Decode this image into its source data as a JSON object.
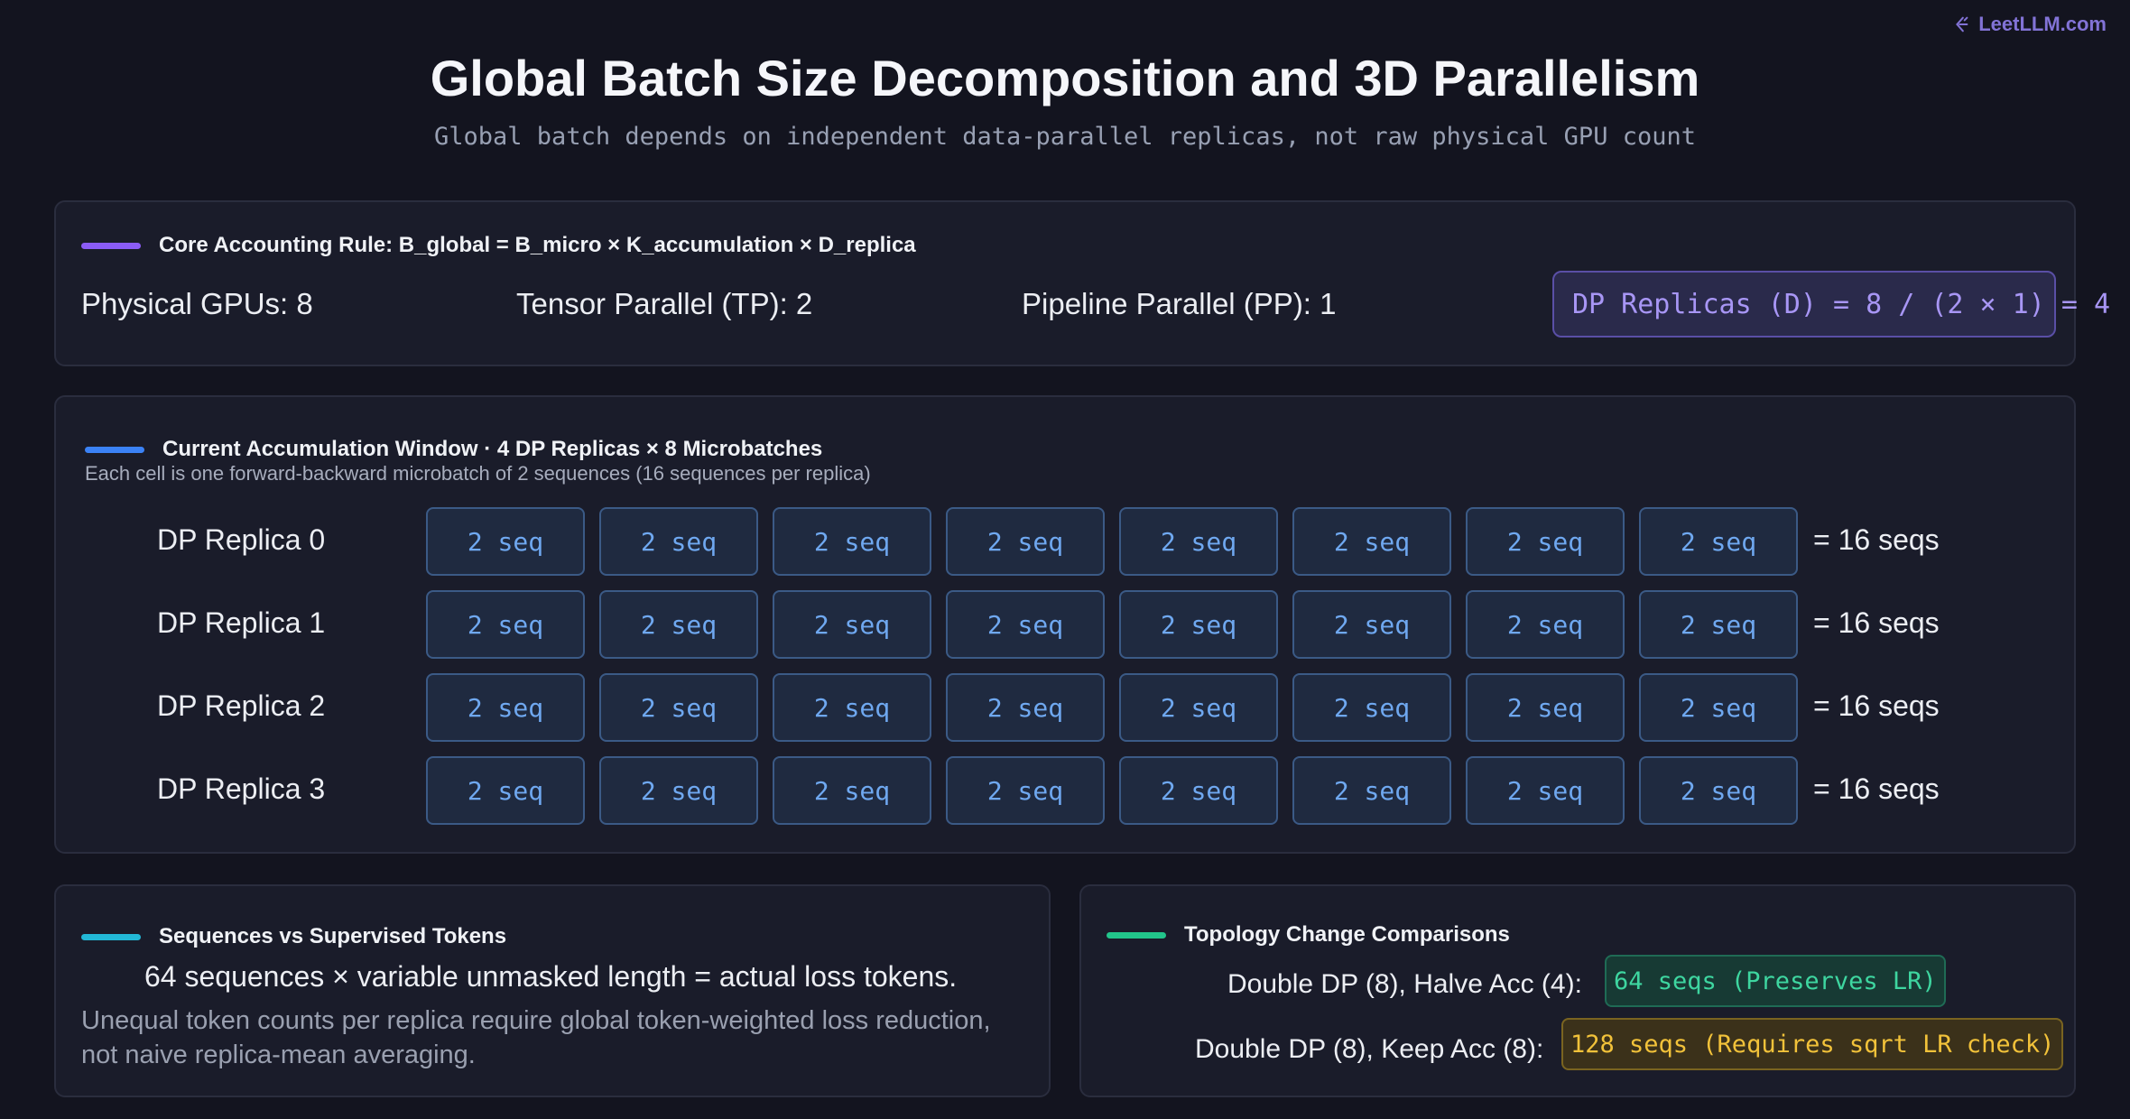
{
  "brand": {
    "name": "LeetLLM.com",
    "icon": "leetllm-logo-icon"
  },
  "header": {
    "title": "Global Batch Size Decomposition and 3D Parallelism",
    "subtitle": "Global batch depends on independent data-parallel replicas, not raw physical GPU count"
  },
  "core_rule": {
    "title": "Core Accounting Rule: B_global = B_micro × K_accumulation × D_replica",
    "accent_color": "#8b5cf6",
    "physical_gpus": "Physical GPUs: 8",
    "tensor_parallel": "Tensor Parallel (TP): 2",
    "pipeline_parallel": "Pipeline Parallel (PP): 1",
    "dp_formula": "DP Replicas (D) = 8 / (2 × 1) = 4"
  },
  "accumulation": {
    "title": "Current Accumulation Window · 4 DP Replicas × 8 Microbatches",
    "note": "Each cell is one forward-backward microbatch of 2 sequences (16 sequences per replica)",
    "accent_color": "#3b82f6",
    "replicas": [
      {
        "label": "DP Replica 0",
        "cells": [
          "2 seq",
          "2 seq",
          "2 seq",
          "2 seq",
          "2 seq",
          "2 seq",
          "2 seq",
          "2 seq"
        ],
        "total": "= 16 seqs"
      },
      {
        "label": "DP Replica 1",
        "cells": [
          "2 seq",
          "2 seq",
          "2 seq",
          "2 seq",
          "2 seq",
          "2 seq",
          "2 seq",
          "2 seq"
        ],
        "total": "= 16 seqs"
      },
      {
        "label": "DP Replica 2",
        "cells": [
          "2 seq",
          "2 seq",
          "2 seq",
          "2 seq",
          "2 seq",
          "2 seq",
          "2 seq",
          "2 seq"
        ],
        "total": "= 16 seqs"
      },
      {
        "label": "DP Replica 3",
        "cells": [
          "2 seq",
          "2 seq",
          "2 seq",
          "2 seq",
          "2 seq",
          "2 seq",
          "2 seq",
          "2 seq"
        ],
        "total": "= 16 seqs"
      }
    ]
  },
  "sequences": {
    "title": "Sequences vs Supervised Tokens",
    "accent_color": "#22b8d6",
    "main": "64 sequences × variable unmasked length = actual loss tokens.",
    "note": "Unequal token counts per replica require global token-weighted loss reduction, not naive replica-mean averaging."
  },
  "topology": {
    "title": "Topology Change Comparisons",
    "accent_color": "#22c58b",
    "rows": [
      {
        "label": "Double DP (8), Halve Acc (4):",
        "result": "64 seqs (Preserves LR)",
        "color": "#3ed6a0"
      },
      {
        "label": "Double DP (8), Keep Acc (8):",
        "result": "128 seqs (Requires sqrt LR check)",
        "color": "#f2c23a"
      }
    ]
  }
}
